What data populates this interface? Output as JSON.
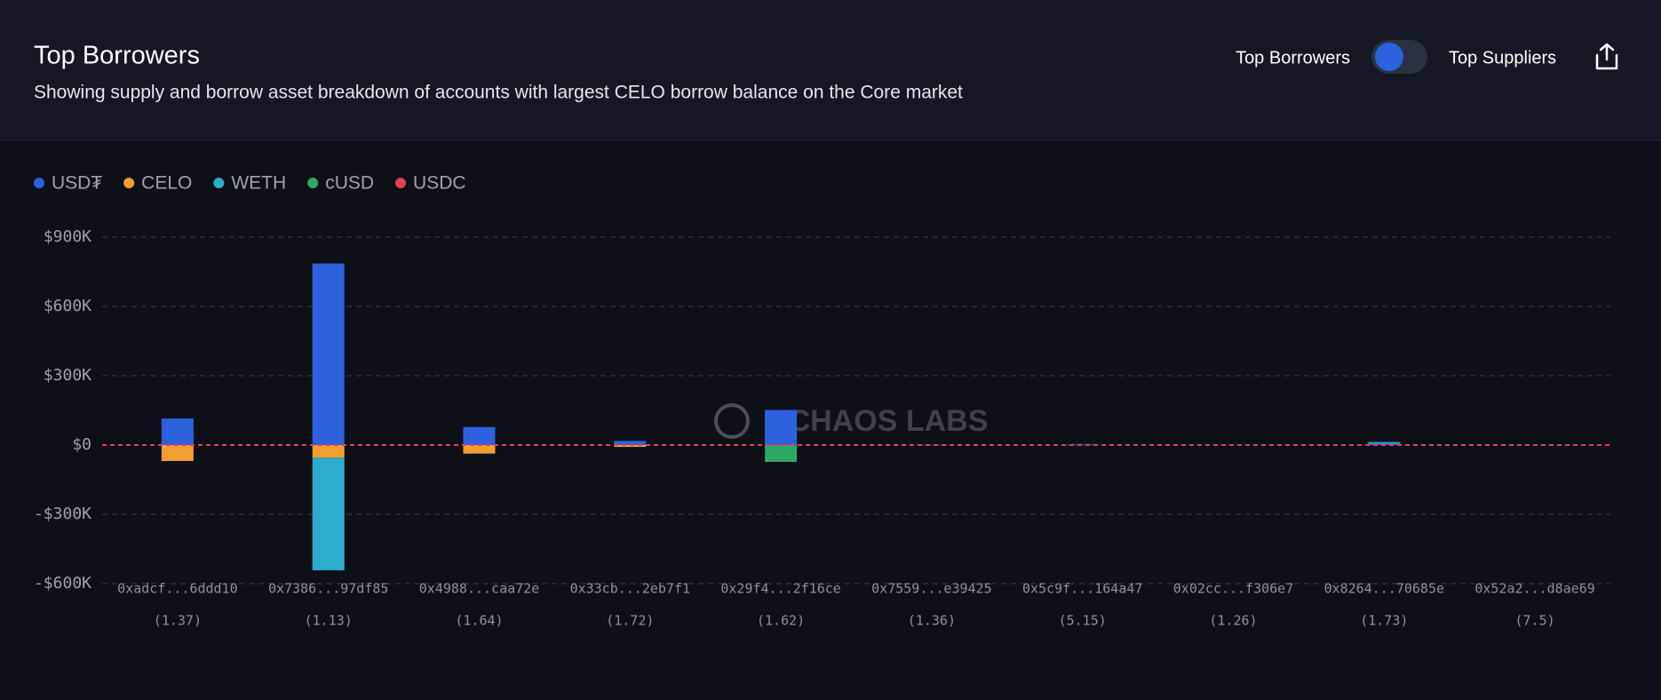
{
  "header": {
    "title": "Top Borrowers",
    "subtitle": "Showing supply and borrow asset breakdown of accounts with largest CELO borrow balance on the Core market",
    "toggle_left": "Top Borrowers",
    "toggle_right": "Top Suppliers"
  },
  "chart_data": {
    "type": "bar",
    "stacked": true,
    "watermark": "CHAOS LABS",
    "categories": [
      "0xadcf...6ddd10",
      "0x7386...97df85",
      "0x4988...caa72e",
      "0x33cb...2eb7f1",
      "0x29f4...2f16ce",
      "0x7559...e39425",
      "0x5c9f...164a47",
      "0x02cc...f306e7",
      "0x8264...70685e",
      "0x52a2...d8ae69"
    ],
    "health_factors": [
      "(1.37)",
      "(1.13)",
      "(1.64)",
      "(1.72)",
      "(1.62)",
      "(1.36)",
      "(5.15)",
      "(1.26)",
      "(1.73)",
      "(7.5)"
    ],
    "series": [
      {
        "name": "USD₮",
        "color": "#2d62de",
        "values": [
          115000,
          786000,
          78000,
          18000,
          152000,
          2000,
          3000,
          1000,
          5000,
          1000
        ]
      },
      {
        "name": "CELO",
        "color": "#f59e2f",
        "values": [
          -69000,
          -55000,
          -37000,
          -8000,
          0,
          0,
          0,
          0,
          0,
          0
        ]
      },
      {
        "name": "WETH",
        "color": "#2aaccc",
        "values": [
          0,
          -487000,
          0,
          0,
          0,
          0,
          0,
          0,
          8000,
          0
        ]
      },
      {
        "name": "cUSD",
        "color": "#2fa866",
        "values": [
          0,
          0,
          0,
          0,
          -73000,
          0,
          0,
          0,
          0,
          0
        ]
      },
      {
        "name": "USDC",
        "color": "#e0405a",
        "values": [
          0,
          0,
          0,
          0,
          0,
          0,
          0,
          0,
          0,
          0
        ]
      }
    ],
    "ylim": [
      -600000,
      900000
    ],
    "yticks": [
      {
        "value": -600000,
        "label": "-$600K"
      },
      {
        "value": -300000,
        "label": "-$300K"
      },
      {
        "value": 0,
        "label": "$0"
      },
      {
        "value": 300000,
        "label": "$300K"
      },
      {
        "value": 600000,
        "label": "$600K"
      },
      {
        "value": 900000,
        "label": "$900K"
      }
    ],
    "grid": true
  }
}
